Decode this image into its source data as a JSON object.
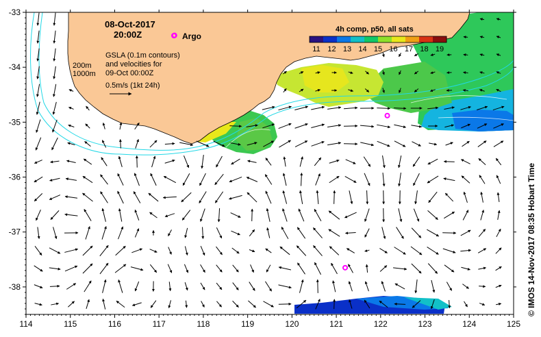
{
  "title": {
    "date": "08-Oct-2017",
    "time": "20:00Z"
  },
  "argo": {
    "label": "Argo",
    "color": "#ff00ff"
  },
  "colorbar": {
    "title": "4h comp, p50, all sats",
    "ticks": [
      "11",
      "12",
      "13",
      "14",
      "15",
      "16",
      "17",
      "18",
      "19"
    ],
    "colors": [
      "#2a1280",
      "#0a30c8",
      "#0a78e8",
      "#12c0c8",
      "#10c868",
      "#8ee02a",
      "#e8e81a",
      "#f0a014",
      "#d83214",
      "#8a0e0e"
    ]
  },
  "isobaths": {
    "shallow": "200m",
    "deep": "1000m",
    "color": "#22d8e6"
  },
  "legend_text": {
    "line1": "GSLA (0.1m contours)",
    "line2": "and velocities for",
    "line3": "09-Oct 00:00Z",
    "line4": "0.5m/s (1kt 24h)"
  },
  "axes": {
    "x_ticks": [
      "114",
      "115",
      "116",
      "117",
      "118",
      "119",
      "120",
      "121",
      "122",
      "123",
      "124",
      "125"
    ],
    "y_ticks": [
      "-33",
      "-34",
      "-35",
      "-36",
      "-37",
      "-38"
    ],
    "lon_range": [
      114,
      125
    ],
    "lat_range": [
      -38.5,
      -33
    ]
  },
  "credit": "© IMOS 14-Nov-2017 08:35 Hobart Time",
  "colors": {
    "land": "#fac896",
    "ocean": "#ffffff"
  },
  "argo_floats": [
    {
      "lon": 117.35,
      "lat": -33.42
    },
    {
      "lon": 122.15,
      "lat": -34.88
    },
    {
      "lon": 121.2,
      "lat": -37.65
    }
  ]
}
